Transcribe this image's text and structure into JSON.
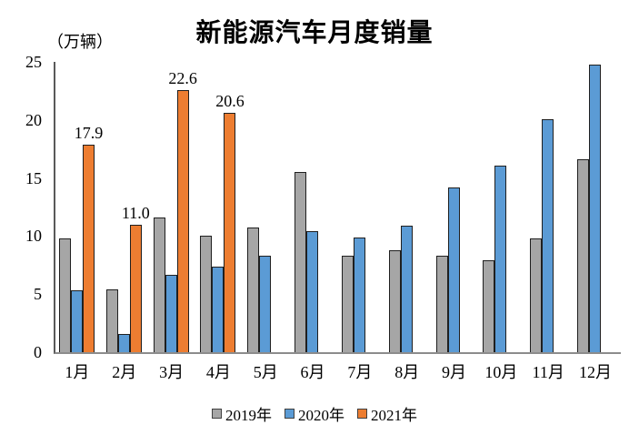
{
  "chart_data": {
    "type": "bar",
    "title": "新能源汽车月度销量",
    "unit_label": "（万辆）",
    "categories": [
      "1月",
      "2月",
      "3月",
      "4月",
      "5月",
      "6月",
      "7月",
      "8月",
      "9月",
      "10月",
      "11月",
      "12月"
    ],
    "series": [
      {
        "name": "2019年",
        "color": "#A6A6A6",
        "values": [
          9.8,
          5.4,
          11.6,
          10.0,
          10.7,
          15.5,
          8.3,
          8.8,
          8.3,
          7.9,
          9.8,
          16.6
        ],
        "show_data_labels": false
      },
      {
        "name": "2020年",
        "color": "#5B9BD5",
        "values": [
          5.3,
          1.6,
          6.7,
          7.4,
          8.3,
          10.4,
          9.9,
          10.9,
          14.2,
          16.1,
          20.1,
          24.8
        ],
        "show_data_labels": false
      },
      {
        "name": "2021年",
        "color": "#ED7D31",
        "values": [
          17.9,
          11.0,
          22.6,
          20.6,
          null,
          null,
          null,
          null,
          null,
          null,
          null,
          null
        ],
        "show_data_labels": true,
        "data_labels": [
          "17.9",
          "11.0",
          "22.6",
          "20.6",
          "",
          "",
          "",
          "",
          "",
          "",
          "",
          ""
        ]
      }
    ],
    "ylim": [
      0,
      25
    ],
    "y_ticks": [
      "0",
      "5",
      "10",
      "15",
      "20",
      "25"
    ],
    "grid": false,
    "legend_position": "bottom"
  }
}
